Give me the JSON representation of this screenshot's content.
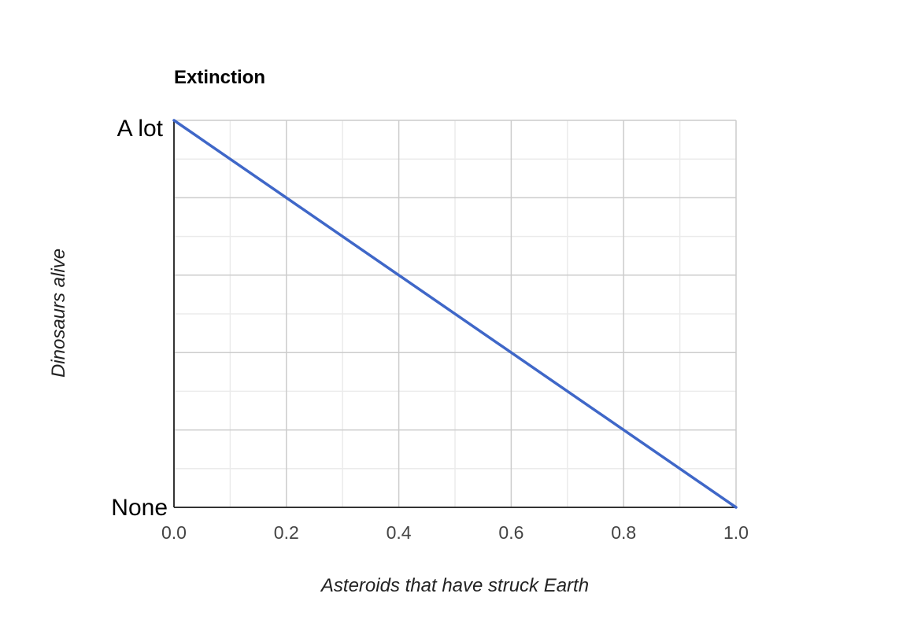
{
  "chart_data": {
    "type": "line",
    "title": "Extinction",
    "xlabel": "Asteroids that have struck Earth",
    "ylabel": "Dinosaurs alive",
    "xlim": [
      0,
      1
    ],
    "ylim": [
      0,
      1
    ],
    "x_ticks": [
      {
        "value": 0.0,
        "label": "0.0"
      },
      {
        "value": 0.2,
        "label": "0.2"
      },
      {
        "value": 0.4,
        "label": "0.4"
      },
      {
        "value": 0.6,
        "label": "0.6"
      },
      {
        "value": 0.8,
        "label": "0.8"
      },
      {
        "value": 1.0,
        "label": "1.0"
      }
    ],
    "y_ticks": [
      {
        "value": 0,
        "label": "None"
      },
      {
        "value": 1,
        "label": "A lot"
      }
    ],
    "grid": true,
    "legend": "none",
    "series": [
      {
        "color": "#3f67c8",
        "x": [
          0,
          1
        ],
        "y": [
          1,
          0
        ]
      }
    ]
  }
}
